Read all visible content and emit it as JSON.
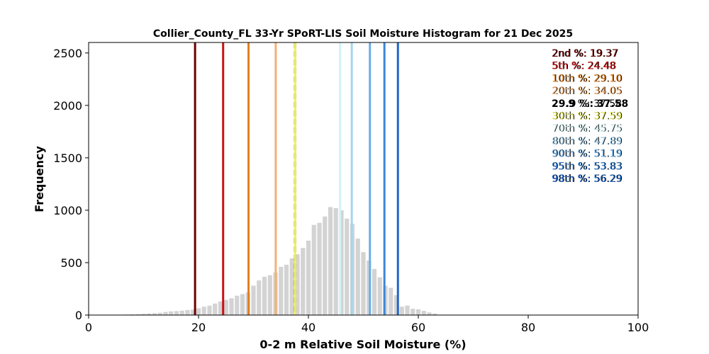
{
  "chart_data": {
    "type": "bar",
    "title": "Collier_County_FL 33-Yr SPoRT-LIS Soil Moisture Histogram for 21 Dec 2025",
    "xlabel": "0-2 m Relative Soil Moisture (%)",
    "ylabel": "Frequency",
    "xlim": [
      0,
      100
    ],
    "ylim": [
      0,
      2600
    ],
    "xticks": [
      0,
      20,
      40,
      60,
      80,
      100
    ],
    "yticks": [
      0,
      500,
      1000,
      1500,
      2000,
      2500
    ],
    "bar_color": "#d3d3d3",
    "bins": {
      "x": [
        5,
        6,
        7,
        8,
        9,
        10,
        11,
        12,
        13,
        14,
        15,
        16,
        17,
        18,
        19,
        20,
        21,
        22,
        23,
        24,
        25,
        26,
        27,
        28,
        29,
        30,
        31,
        32,
        33,
        34,
        35,
        36,
        37,
        38,
        39,
        40,
        41,
        42,
        43,
        44,
        45,
        46,
        47,
        48,
        49,
        50,
        51,
        52,
        53,
        54,
        55,
        56,
        57,
        58,
        59,
        60,
        61,
        62,
        63
      ],
      "values": [
        3,
        4,
        5,
        7,
        9,
        12,
        15,
        18,
        22,
        30,
        35,
        38,
        42,
        48,
        52,
        65,
        80,
        90,
        110,
        130,
        145,
        160,
        185,
        200,
        215,
        280,
        330,
        365,
        380,
        405,
        460,
        480,
        540,
        580,
        640,
        710,
        860,
        880,
        940,
        1030,
        1020,
        1000,
        920,
        870,
        730,
        600,
        520,
        440,
        360,
        280,
        260,
        190,
        80,
        90,
        60,
        55,
        40,
        25,
        15
      ]
    },
    "percentiles": [
      {
        "label": "2nd %: 19.37",
        "value": 19.37,
        "color": "#6b0000",
        "style": "solid"
      },
      {
        "label": "5th %: 24.48",
        "value": 24.48,
        "color": "#cc1111",
        "style": "solid"
      },
      {
        "label": "10th %: 29.10",
        "value": 29.1,
        "color": "#e08020",
        "style": "solid"
      },
      {
        "label": "20th %: 34.05",
        "value": 34.05,
        "color": "#f5b070",
        "style": "solid"
      },
      {
        "label": "29.9 %: 37.58",
        "value": 37.58,
        "color": "#000000",
        "style": "dashed"
      },
      {
        "label": "30th %: 37.59",
        "value": 37.59,
        "color": "#f0f060",
        "style": "solid"
      },
      {
        "label": "70th %: 45.75",
        "value": 45.75,
        "color": "#d0f4f8",
        "style": "solid"
      },
      {
        "label": "80th %: 47.89",
        "value": 47.89,
        "color": "#a4d4f0",
        "style": "solid"
      },
      {
        "label": "90th %: 51.19",
        "value": 51.19,
        "color": "#6aaee6",
        "style": "solid"
      },
      {
        "label": "95th %: 53.83",
        "value": 53.83,
        "color": "#3c86d6",
        "style": "solid"
      },
      {
        "label": "98th %: 56.29",
        "value": 56.29,
        "color": "#1f66c8",
        "style": "solid"
      }
    ]
  }
}
